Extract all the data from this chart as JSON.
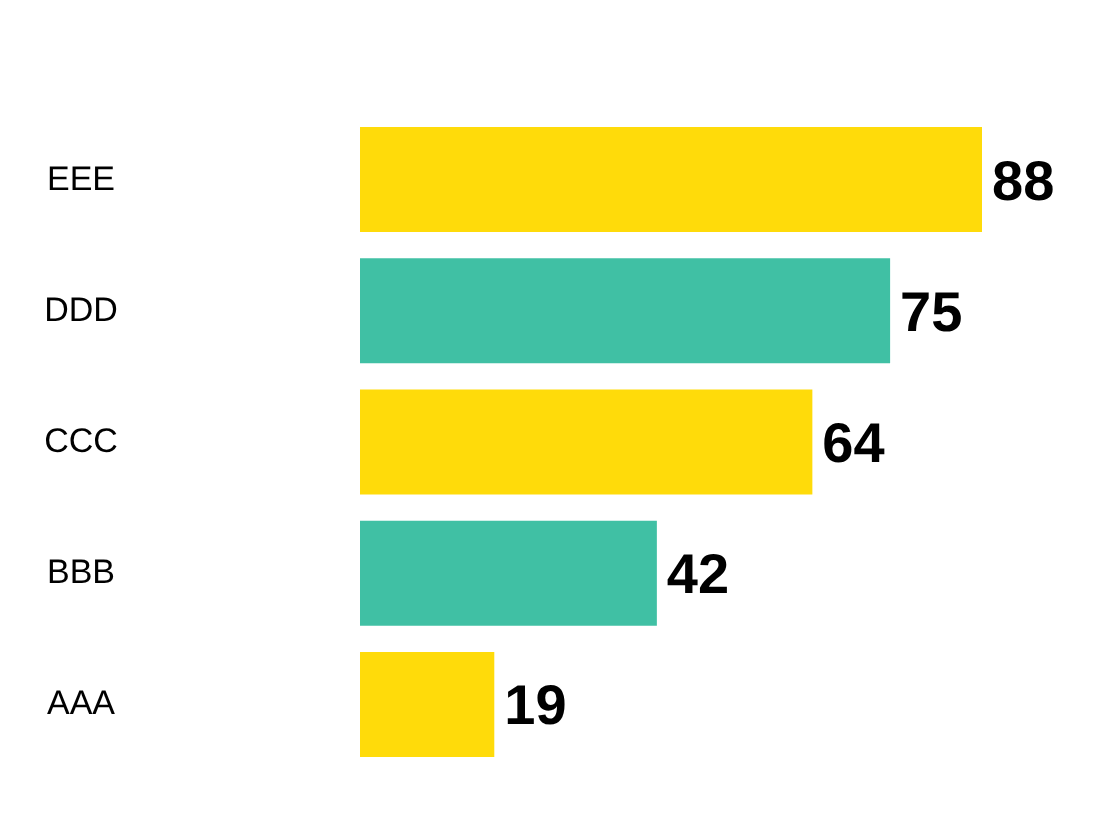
{
  "chart_data": {
    "type": "bar",
    "orientation": "horizontal",
    "categories": [
      "EEE",
      "DDD",
      "CCC",
      "BBB",
      "AAA"
    ],
    "values": [
      88,
      75,
      64,
      42,
      19
    ],
    "colors": [
      "#ffdb0a",
      "#40c0a4",
      "#ffdb0a",
      "#40c0a4",
      "#ffdb0a"
    ],
    "data_labels": true
  }
}
